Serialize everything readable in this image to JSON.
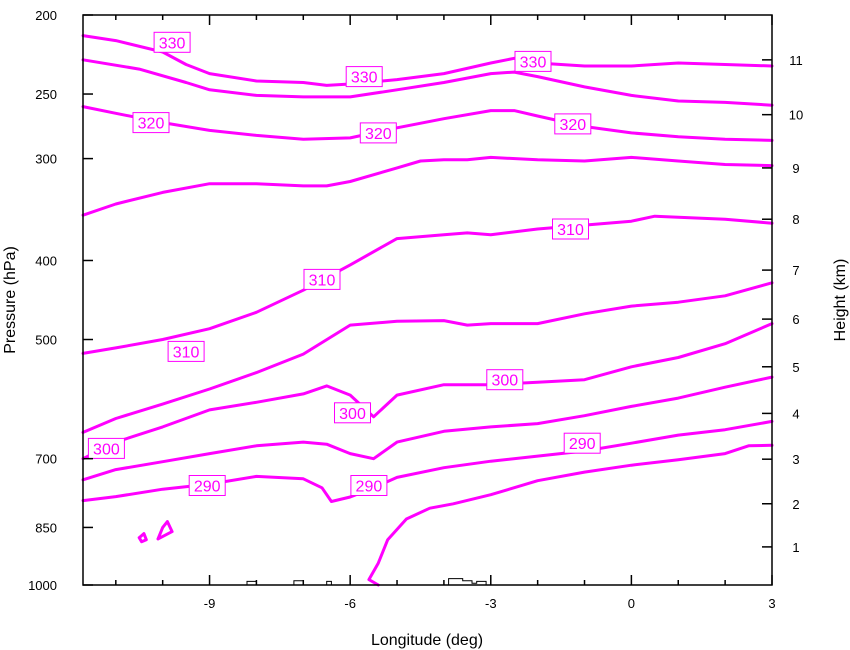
{
  "chart_data": {
    "type": "contour",
    "xlabel": "Longitude (deg)",
    "ylabel": "Pressure (hPa)",
    "y2label": "Height (km)",
    "xlim": [
      -11.7,
      3
    ],
    "ylim": [
      1000,
      200
    ],
    "yscale": "log",
    "xticks": [
      {
        "value": -9,
        "label": "-9"
      },
      {
        "value": -6,
        "label": "-6"
      },
      {
        "value": -3,
        "label": "-3"
      },
      {
        "value": 0,
        "label": "0"
      },
      {
        "value": 3,
        "label": "3"
      }
    ],
    "yticks": [
      {
        "value": 200,
        "label": "200"
      },
      {
        "value": 250,
        "label": "250"
      },
      {
        "value": 300,
        "label": "300"
      },
      {
        "value": 400,
        "label": "400"
      },
      {
        "value": 500,
        "label": "500"
      },
      {
        "value": 700,
        "label": "700"
      },
      {
        "value": 850,
        "label": "850"
      },
      {
        "value": 1000,
        "label": "1000"
      }
    ],
    "y2ticks": [
      {
        "value": 1,
        "label": "1"
      },
      {
        "value": 2,
        "label": "2"
      },
      {
        "value": 3,
        "label": "3"
      },
      {
        "value": 4,
        "label": "4"
      },
      {
        "value": 5,
        "label": "5"
      },
      {
        "value": 6,
        "label": "6"
      },
      {
        "value": 7,
        "label": "7"
      },
      {
        "value": 8,
        "label": "8"
      },
      {
        "value": 9,
        "label": "9"
      },
      {
        "value": 10,
        "label": "10"
      },
      {
        "value": 11,
        "label": "11"
      }
    ],
    "y2_pressure_equivalents": [
      898,
      795,
      701,
      616,
      540,
      472,
      411,
      356,
      308,
      265,
      227
    ],
    "contours": [
      {
        "level": 330,
        "points": [
          [
            -11.7,
            212
          ],
          [
            -11.0,
            215
          ],
          [
            -10.0,
            222
          ],
          [
            -9.5,
            230
          ],
          [
            -9.0,
            236
          ],
          [
            -8.0,
            241
          ],
          [
            -7.0,
            242
          ],
          [
            -6.5,
            244
          ],
          [
            -6.0,
            243
          ],
          [
            -5.0,
            240
          ],
          [
            -4.0,
            236
          ],
          [
            -3.0,
            229
          ],
          [
            -2.5,
            226
          ],
          [
            -2.0,
            229
          ],
          [
            -1.0,
            231
          ],
          [
            0.0,
            231
          ],
          [
            1.0,
            229
          ],
          [
            2.0,
            230
          ],
          [
            3.0,
            231
          ]
        ]
      },
      {
        "level": 330,
        "points": [
          [
            -11.7,
            227
          ],
          [
            -10.5,
            233
          ],
          [
            -9.5,
            242
          ],
          [
            -9.0,
            247
          ],
          [
            -8.0,
            251
          ],
          [
            -7.0,
            252
          ],
          [
            -6.0,
            252
          ],
          [
            -5.0,
            247
          ],
          [
            -4.0,
            242
          ],
          [
            -3.0,
            236
          ],
          [
            -2.5,
            235
          ],
          [
            -2.0,
            238
          ],
          [
            -1.0,
            245
          ],
          [
            0.0,
            251
          ],
          [
            1.0,
            255
          ],
          [
            2.0,
            256
          ],
          [
            3.0,
            258
          ]
        ]
      },
      {
        "level": 320,
        "points": [
          [
            -11.7,
            259
          ],
          [
            -11.0,
            264
          ],
          [
            -10.0,
            271
          ],
          [
            -9.0,
            277
          ],
          [
            -8.0,
            281
          ],
          [
            -7.0,
            284
          ],
          [
            -6.0,
            283
          ],
          [
            -5.0,
            275
          ],
          [
            -4.0,
            268
          ],
          [
            -3.0,
            262
          ],
          [
            -2.5,
            262
          ],
          [
            -2.0,
            266
          ],
          [
            -1.0,
            274
          ],
          [
            0.0,
            279
          ],
          [
            1.0,
            282
          ],
          [
            2.0,
            284
          ],
          [
            3.0,
            285
          ]
        ]
      },
      {
        "level": 320,
        "points": [
          [
            -11.7,
            352
          ],
          [
            -11.0,
            341
          ],
          [
            -10.0,
            330
          ],
          [
            -9.0,
            322
          ],
          [
            -8.0,
            322
          ],
          [
            -7.0,
            324
          ],
          [
            -6.5,
            324
          ],
          [
            -6.0,
            320
          ],
          [
            -5.0,
            308
          ],
          [
            -4.5,
            302
          ],
          [
            -4.0,
            301
          ],
          [
            -3.5,
            301
          ],
          [
            -3.0,
            299
          ],
          [
            -2.0,
            301
          ],
          [
            -1.0,
            302
          ],
          [
            0.0,
            299
          ],
          [
            1.0,
            302
          ],
          [
            2.0,
            305
          ],
          [
            3.0,
            306
          ]
        ]
      },
      {
        "level": 310,
        "points": [
          [
            -11.7,
            520
          ],
          [
            -11.0,
            512
          ],
          [
            -10.0,
            500
          ],
          [
            -9.0,
            485
          ],
          [
            -8.0,
            463
          ],
          [
            -7.0,
            435
          ],
          [
            -6.0,
            405
          ],
          [
            -5.0,
            376
          ],
          [
            -4.0,
            372
          ],
          [
            -3.5,
            370
          ],
          [
            -3.0,
            372
          ],
          [
            -2.0,
            366
          ],
          [
            -1.0,
            362
          ],
          [
            0.0,
            358
          ],
          [
            0.5,
            353
          ],
          [
            1.0,
            354
          ],
          [
            2.0,
            356
          ],
          [
            3.0,
            360
          ]
        ]
      },
      {
        "level": 310,
        "points": [
          [
            -11.7,
            650
          ],
          [
            -11.0,
            625
          ],
          [
            -10.0,
            600
          ],
          [
            -9.0,
            575
          ],
          [
            -8.0,
            549
          ],
          [
            -7.0,
            521
          ],
          [
            -6.0,
            480
          ],
          [
            -5.0,
            475
          ],
          [
            -4.0,
            474
          ],
          [
            -3.5,
            480
          ],
          [
            -3.0,
            478
          ],
          [
            -2.0,
            478
          ],
          [
            -1.0,
            465
          ],
          [
            0.0,
            455
          ],
          [
            1.0,
            450
          ],
          [
            2.0,
            442
          ],
          [
            3.0,
            426
          ]
        ]
      },
      {
        "level": 300,
        "points": [
          [
            -11.7,
            700
          ],
          [
            -11.0,
            668
          ],
          [
            -10.0,
            640
          ],
          [
            -9.0,
            610
          ],
          [
            -8.0,
            597
          ],
          [
            -7.0,
            583
          ],
          [
            -6.5,
            570
          ],
          [
            -6.0,
            585
          ],
          [
            -5.5,
            622
          ],
          [
            -5.0,
            585
          ],
          [
            -4.0,
            568
          ],
          [
            -3.0,
            568
          ],
          [
            -2.0,
            564
          ],
          [
            -1.0,
            560
          ],
          [
            0.0,
            540
          ],
          [
            1.0,
            526
          ],
          [
            2.0,
            506
          ],
          [
            3.0,
            478
          ]
        ]
      },
      {
        "level": 300,
        "points": [
          [
            -11.7,
            743
          ],
          [
            -11.0,
            722
          ],
          [
            -10.0,
            706
          ],
          [
            -9.0,
            690
          ],
          [
            -8.0,
            675
          ],
          [
            -7.0,
            668
          ],
          [
            -6.5,
            672
          ],
          [
            -6.0,
            690
          ],
          [
            -5.5,
            700
          ],
          [
            -5.0,
            668
          ],
          [
            -4.0,
            648
          ],
          [
            -3.0,
            640
          ],
          [
            -2.0,
            634
          ],
          [
            -1.0,
            620
          ],
          [
            0.0,
            604
          ],
          [
            1.0,
            590
          ],
          [
            2.0,
            572
          ],
          [
            3.0,
            556
          ]
        ]
      },
      {
        "level": 290,
        "points": [
          [
            -11.7,
            788
          ],
          [
            -11.0,
            779
          ],
          [
            -10.0,
            763
          ],
          [
            -9.0,
            752
          ],
          [
            -8.0,
            736
          ],
          [
            -7.0,
            741
          ],
          [
            -6.6,
            760
          ],
          [
            -6.4,
            790
          ],
          [
            -6.0,
            780
          ],
          [
            -5.5,
            760
          ],
          [
            -5.0,
            738
          ],
          [
            -4.0,
            718
          ],
          [
            -3.0,
            705
          ],
          [
            -2.0,
            695
          ],
          [
            -1.0,
            685
          ],
          [
            0.0,
            670
          ],
          [
            1.0,
            655
          ],
          [
            2.0,
            645
          ],
          [
            3.0,
            630
          ]
        ]
      },
      {
        "level": 290,
        "points": [
          [
            -5.4,
            1000
          ],
          [
            -5.6,
            985
          ],
          [
            -5.4,
            940
          ],
          [
            -5.2,
            880
          ],
          [
            -4.8,
            830
          ],
          [
            -4.3,
            805
          ],
          [
            -3.8,
            795
          ],
          [
            -3.0,
            775
          ],
          [
            -2.0,
            745
          ],
          [
            -1.0,
            727
          ],
          [
            0.0,
            713
          ],
          [
            1.0,
            702
          ],
          [
            2.0,
            690
          ],
          [
            2.5,
            675
          ],
          [
            3.0,
            674
          ]
        ]
      },
      {
        "level": 290,
        "points": [
          [
            -10.1,
            878
          ],
          [
            -10.0,
            850
          ],
          [
            -9.9,
            836
          ],
          [
            -9.8,
            860
          ],
          [
            -10.1,
            878
          ]
        ]
      },
      {
        "level": 290,
        "points": [
          [
            -10.5,
            875
          ],
          [
            -10.4,
            865
          ],
          [
            -10.35,
            880
          ],
          [
            -10.45,
            885
          ],
          [
            -10.5,
            875
          ]
        ]
      }
    ],
    "contour_labels": [
      {
        "text": "330",
        "x": -9.8,
        "p": 216
      },
      {
        "text": "330",
        "x": -5.7,
        "p": 238
      },
      {
        "text": "330",
        "x": -2.1,
        "p": 228
      },
      {
        "text": "320",
        "x": -10.25,
        "p": 271
      },
      {
        "text": "320",
        "x": -5.4,
        "p": 279
      },
      {
        "text": "320",
        "x": -1.25,
        "p": 272
      },
      {
        "text": "310",
        "x": -6.6,
        "p": 422
      },
      {
        "text": "310",
        "x": -1.3,
        "p": 366
      },
      {
        "text": "310",
        "x": -9.5,
        "p": 517
      },
      {
        "text": "300",
        "x": -2.7,
        "p": 560
      },
      {
        "text": "300",
        "x": -5.95,
        "p": 615
      },
      {
        "text": "300",
        "x": -11.2,
        "p": 680
      },
      {
        "text": "290",
        "x": -1.05,
        "p": 670
      },
      {
        "text": "290",
        "x": -5.6,
        "p": 755
      },
      {
        "text": "290",
        "x": -9.05,
        "p": 755
      }
    ],
    "terrain": [
      [
        -8.2,
        1000
      ],
      [
        -8.2,
        990
      ],
      [
        -8.0,
        990
      ],
      [
        -8.0,
        1000
      ],
      [
        -7.2,
        1000
      ],
      [
        -7.2,
        988
      ],
      [
        -7.0,
        988
      ],
      [
        -7.0,
        1000
      ],
      [
        -6.5,
        1000
      ],
      [
        -6.5,
        990
      ],
      [
        -6.4,
        990
      ],
      [
        -6.4,
        1000
      ],
      [
        -3.9,
        1000
      ],
      [
        -3.9,
        982
      ],
      [
        -3.6,
        982
      ],
      [
        -3.6,
        988
      ],
      [
        -3.4,
        988
      ],
      [
        -3.4,
        995
      ],
      [
        -3.3,
        995
      ],
      [
        -3.3,
        990
      ],
      [
        -3.1,
        990
      ],
      [
        -3.1,
        1000
      ],
      [
        -2.9,
        1000
      ]
    ]
  }
}
